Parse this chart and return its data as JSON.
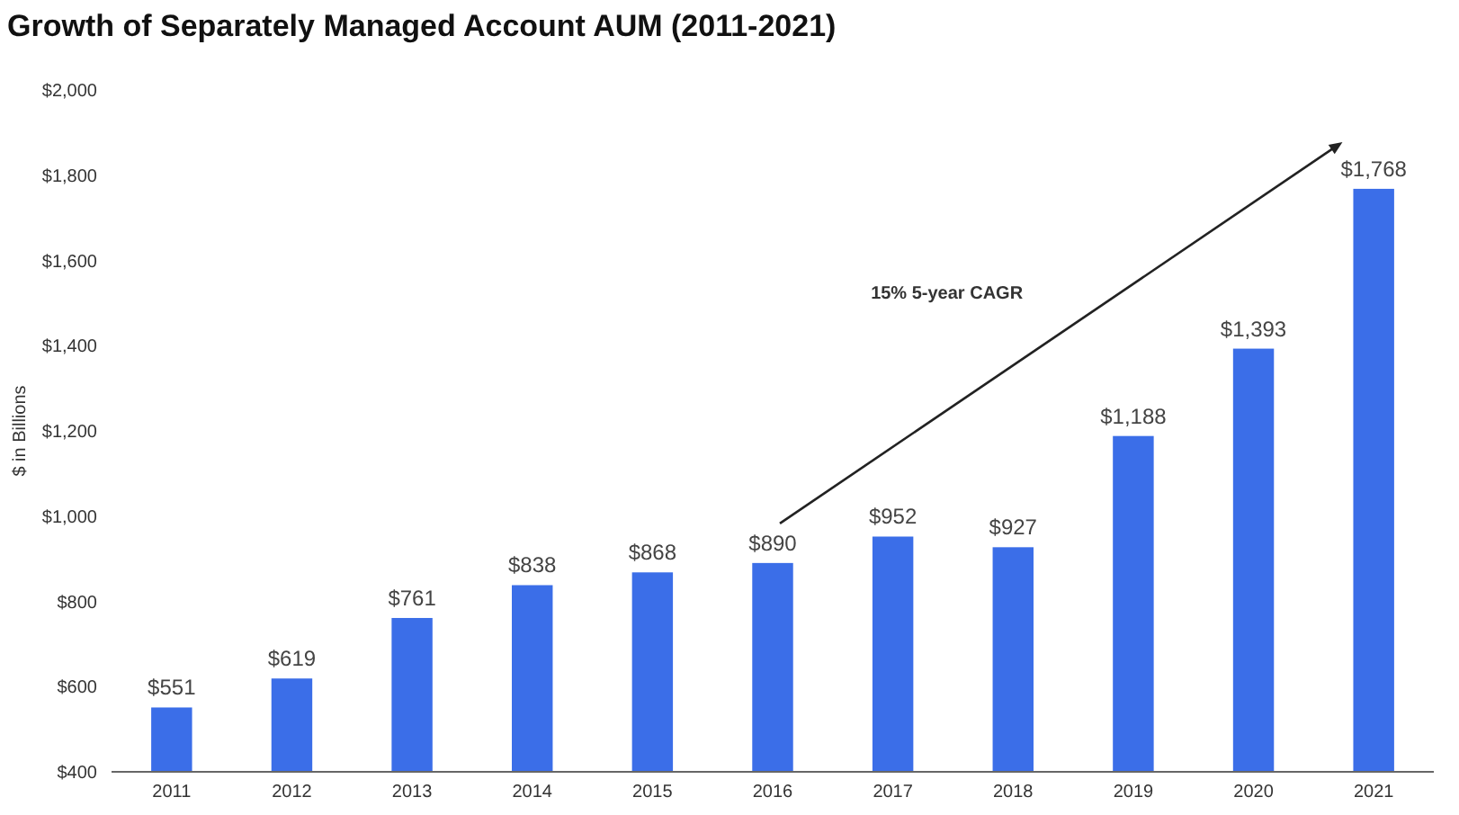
{
  "chart_data": {
    "type": "bar",
    "title": "Growth of Separately Managed Account AUM (2011-2021)",
    "ylabel": "$ in Billions",
    "categories": [
      "2011",
      "2012",
      "2013",
      "2014",
      "2015",
      "2016",
      "2017",
      "2018",
      "2019",
      "2020",
      "2021"
    ],
    "values": [
      551,
      619,
      761,
      838,
      868,
      890,
      952,
      927,
      1188,
      1393,
      1768
    ],
    "value_labels": [
      "$551",
      "$619",
      "$761",
      "$838",
      "$868",
      "$890",
      "$952",
      "$927",
      "$1,188",
      "$1,393",
      "$1,768"
    ],
    "color": "#3b6ee8",
    "ylim": [
      400,
      2000
    ],
    "yticks": [
      {
        "value": 400,
        "label": "$400"
      },
      {
        "value": 600,
        "label": "$600"
      },
      {
        "value": 800,
        "label": "$800"
      },
      {
        "value": 1000,
        "label": "$1,000"
      },
      {
        "value": 1200,
        "label": "$1,200"
      },
      {
        "value": 1400,
        "label": "$1,400"
      },
      {
        "value": 1600,
        "label": "$1,600"
      },
      {
        "value": 1800,
        "label": "$1,800"
      },
      {
        "value": 2000,
        "label": "$2,000"
      }
    ],
    "annotations": [
      "15% 5-year CAGR"
    ]
  }
}
